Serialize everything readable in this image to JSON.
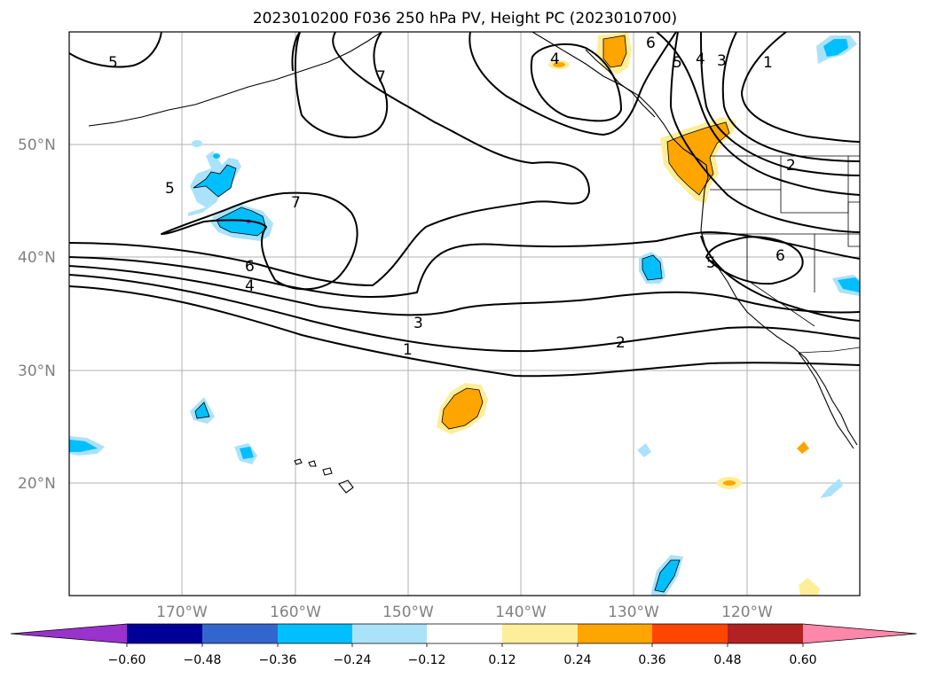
{
  "title": "2023010200 F036 250 hPa PV, Height PC (2023010700)",
  "lat_labels": [
    "50°N",
    "40°N",
    "30°N",
    "20°N"
  ],
  "lon_labels": [
    "170°W",
    "160°W",
    "150°W",
    "140°W",
    "130°W",
    "120°W"
  ],
  "colorbar": {
    "ticks": [
      "−0.60",
      "−0.48",
      "−0.36",
      "−0.24",
      "−0.12",
      "0.12",
      "0.24",
      "0.36",
      "0.48",
      "0.60"
    ],
    "colors": [
      "#9933cc",
      "#000099",
      "#3366cc",
      "#00bfff",
      "#aae2fa",
      "#ffffff",
      "#ffee99",
      "#ffa500",
      "#ff4500",
      "#b22222",
      "#ff88aa"
    ]
  },
  "contour_labels": [
    "5",
    "7",
    "7",
    "4",
    "6",
    "5",
    "4",
    "3",
    "1",
    "5",
    "7",
    "6",
    "4",
    "3",
    "1",
    "2",
    "5",
    "6",
    "2"
  ],
  "colors": {
    "pos_light": "#ffee99",
    "pos_mid": "#ffa500",
    "neg_light": "#aae2fa",
    "neg_mid": "#00bfff",
    "neg_dark": "#3366cc"
  }
}
